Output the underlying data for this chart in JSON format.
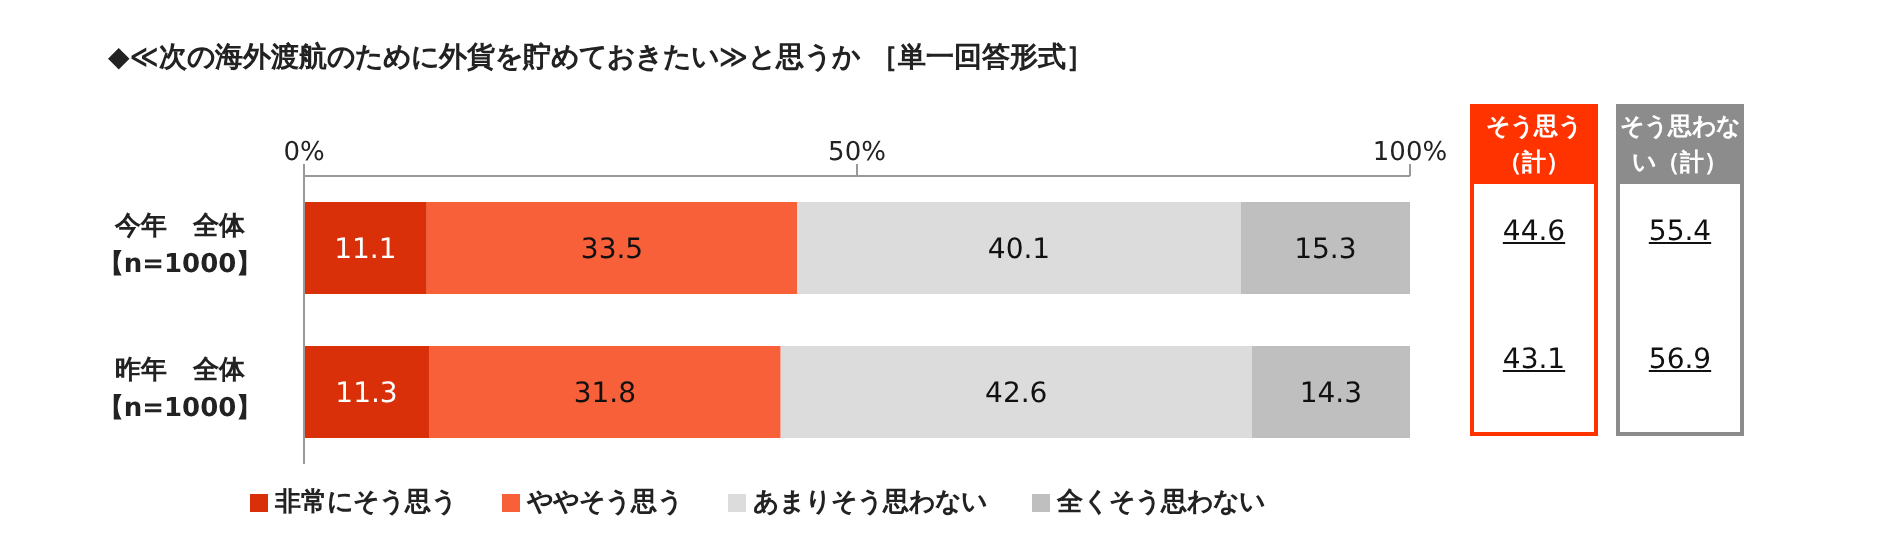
{
  "chart_data": {
    "type": "bar",
    "orientation": "horizontal",
    "stacked": true,
    "title": "◆≪次の海外渡航のために外貨を貯めておきたい≫と思うか ［単一回答形式］",
    "categories": [
      "今年　全体【n=1000】",
      "昨年　全体【n=1000】"
    ],
    "series": [
      {
        "name": "非常にそう思う",
        "color": "#d9300a",
        "values": [
          11.1,
          11.3
        ]
      },
      {
        "name": "ややそう思う",
        "color": "#f8603a",
        "values": [
          33.5,
          31.8
        ]
      },
      {
        "name": "あまりそう思わない",
        "color": "#dcdcdc",
        "values": [
          40.1,
          42.6
        ]
      },
      {
        "name": "全くそう思わない",
        "color": "#bfbfbf",
        "values": [
          15.3,
          14.3
        ]
      }
    ],
    "xlim": [
      0,
      100
    ],
    "xticks": [
      {
        "value": 0,
        "label": "0%"
      },
      {
        "value": 50,
        "label": "50%"
      },
      {
        "value": 100,
        "label": "100%"
      }
    ],
    "data_labels": true,
    "legend": "bottom",
    "grid": false,
    "annotations": [
      "そう思う（計）",
      "そう思わない（計）",
      "44.6",
      "55.4",
      "43.1",
      "56.9"
    ]
  }
}
